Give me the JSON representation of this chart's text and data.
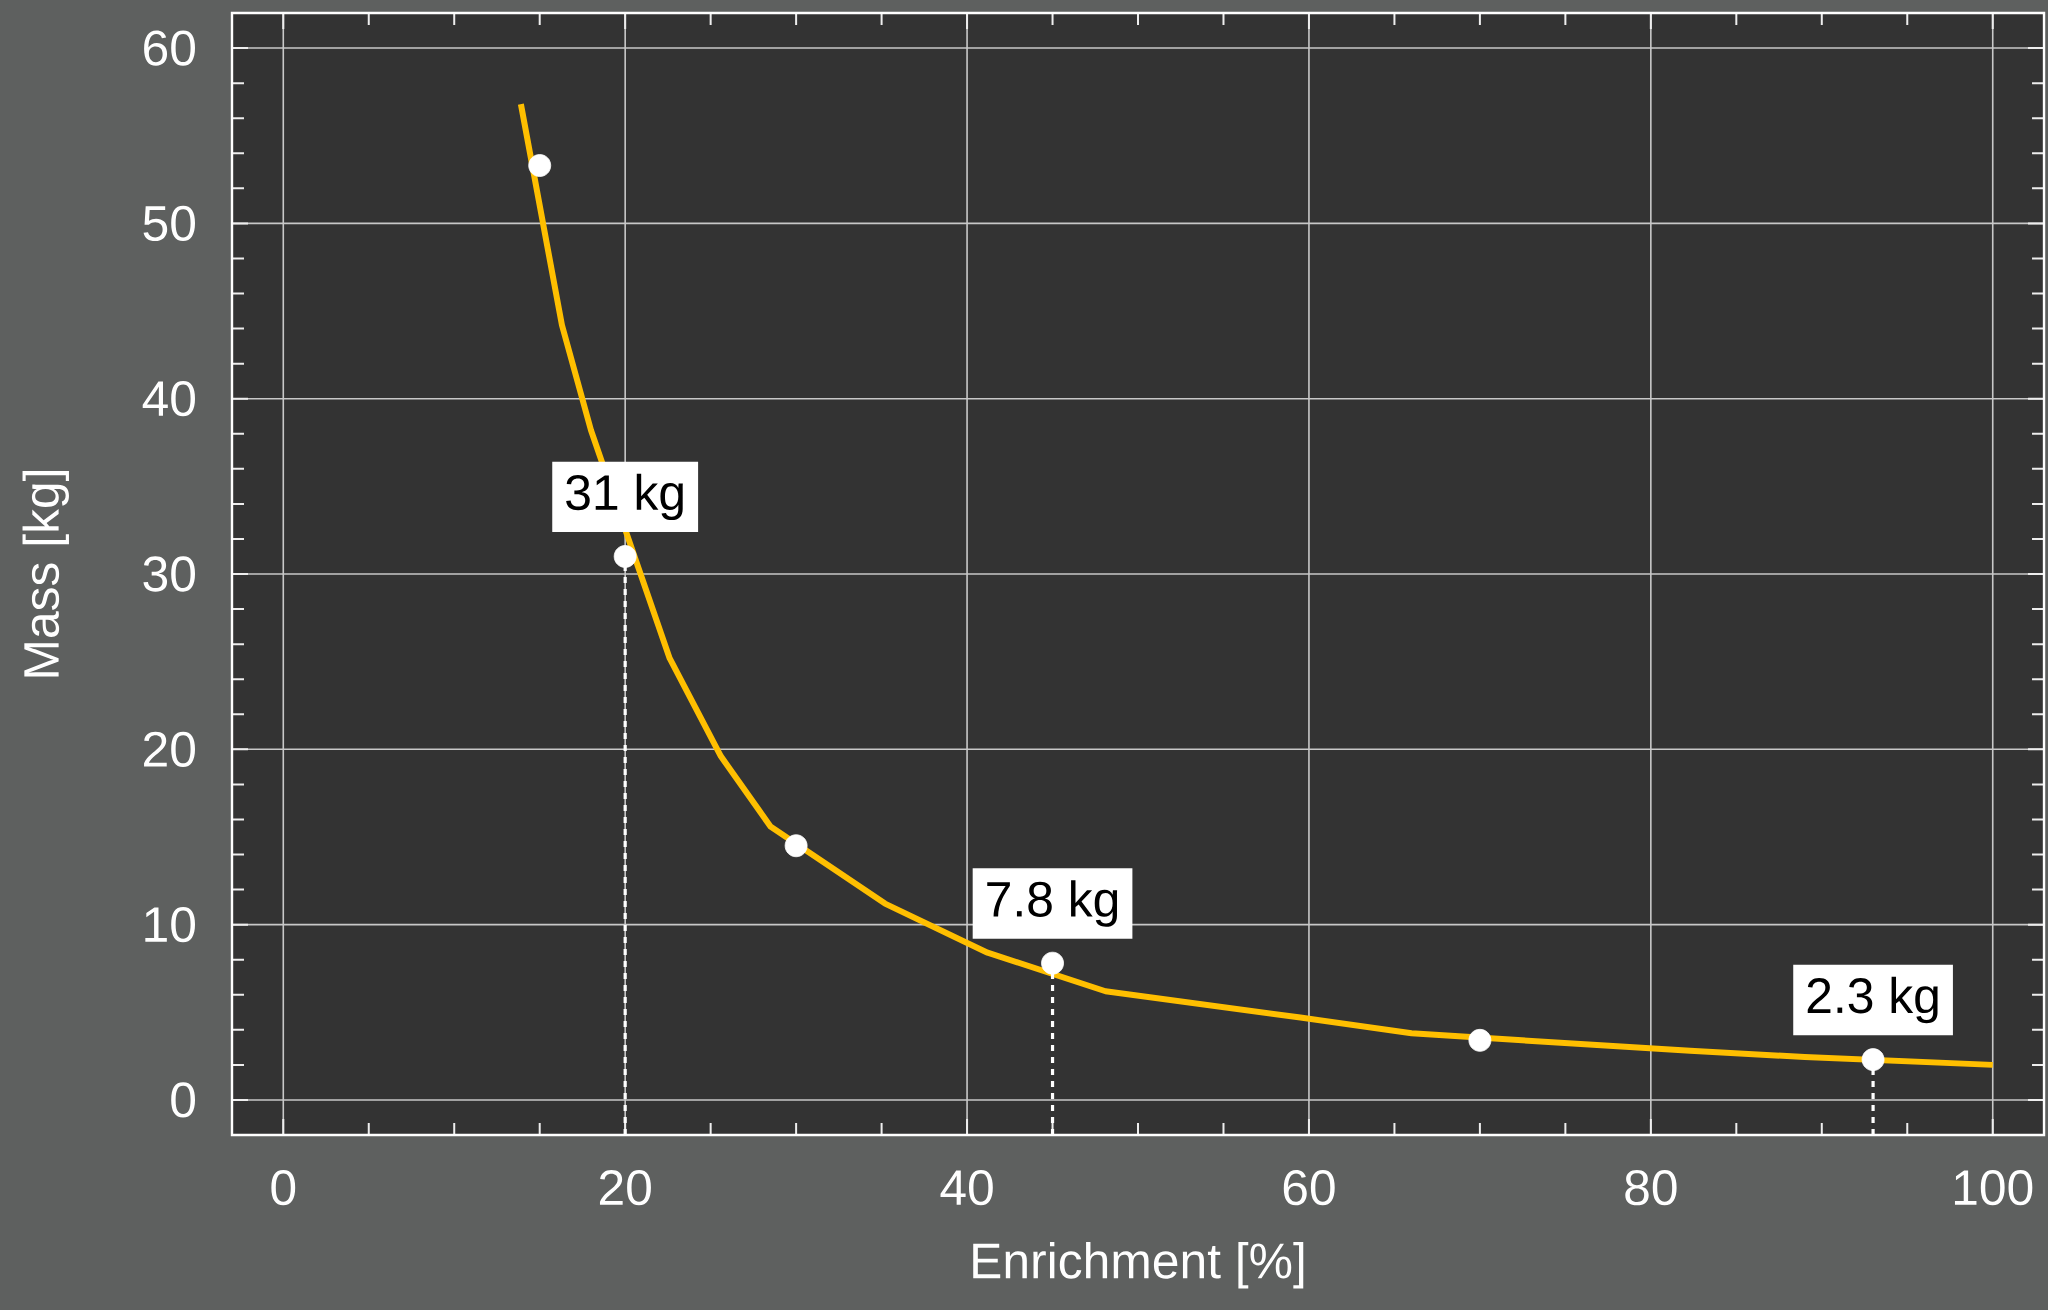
{
  "chart_data": {
    "type": "line",
    "xlabel": "Enrichment [%]",
    "ylabel": "Mass [kg]",
    "xlim": [
      -3,
      103
    ],
    "ylim": [
      -2,
      62
    ],
    "xticks": [
      0,
      20,
      40,
      60,
      80,
      100
    ],
    "yticks": [
      0,
      10,
      20,
      30,
      40,
      50,
      60
    ],
    "grid": true,
    "series": [
      {
        "color": "#ffbf00",
        "x": [
          13.9,
          16.3,
          18.0,
          22.6,
          25.6,
          28.5,
          35.2,
          41.2,
          48.1,
          59.5,
          66.0,
          82.3,
          89.0,
          100
        ],
        "values": [
          56.8,
          44.2,
          38.2,
          25.2,
          19.6,
          15.6,
          11.2,
          8.4,
          6.2,
          4.7,
          3.8,
          2.8,
          2.45,
          2.0
        ]
      },
      {
        "type": "scatter",
        "color": "#ffffff",
        "marker": "circle",
        "x": [
          15,
          20,
          30,
          45,
          70,
          93
        ],
        "values": [
          53.3,
          31,
          14.5,
          7.8,
          3.4,
          2.3
        ]
      },
      {
        "color": "#ffffff",
        "line_style": "dotted",
        "x": [
          20,
          20
        ],
        "values": [
          -2,
          31
        ]
      },
      {
        "color": "#ffffff",
        "line_style": "dotted",
        "x": [
          45,
          45
        ],
        "values": [
          -2,
          7.8
        ]
      },
      {
        "color": "#ffffff",
        "line_style": "dotted",
        "x": [
          93,
          93
        ],
        "values": [
          -2,
          2.3
        ]
      }
    ],
    "annotations": [
      {
        "text": "31 kg",
        "x": 20,
        "y": 31
      },
      {
        "text": "7.8 kg",
        "x": 45,
        "y": 7.8
      },
      {
        "text": "2.3 kg",
        "x": 93,
        "y": 2.3
      }
    ]
  }
}
